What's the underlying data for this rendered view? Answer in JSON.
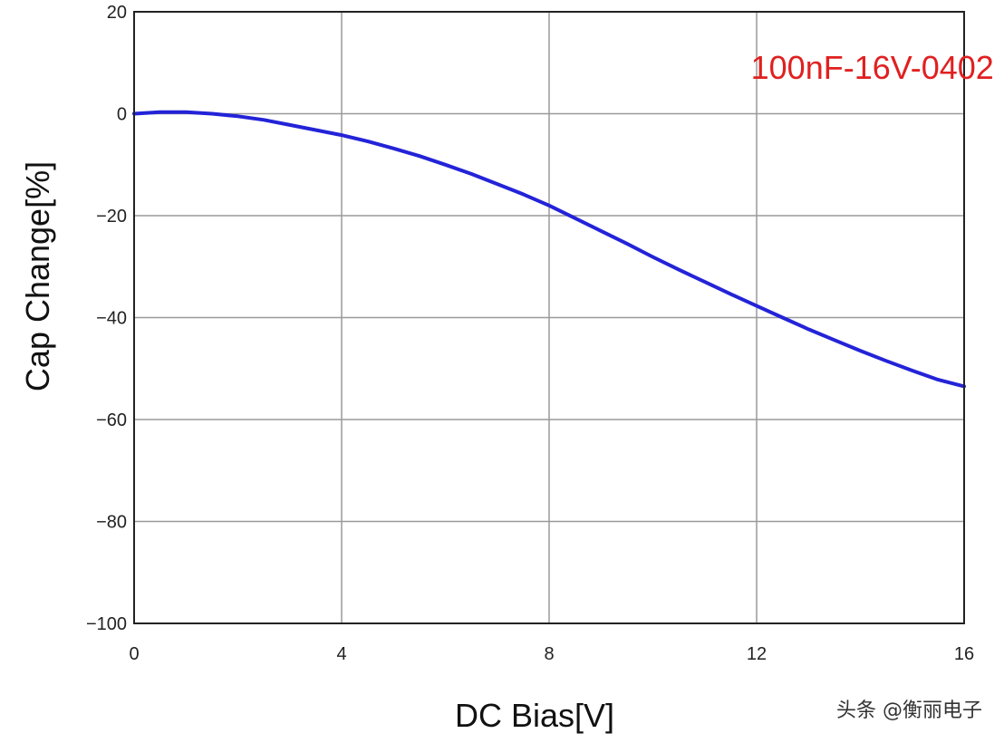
{
  "chart_data": {
    "type": "line",
    "title": "",
    "xlabel": "DC Bias[V]",
    "ylabel": "Cap Change[%]",
    "xlim": [
      0,
      16
    ],
    "ylim": [
      -100,
      20
    ],
    "xticks": [
      0,
      4,
      8,
      12,
      16
    ],
    "xtick_labels": [
      "0",
      "4",
      "8",
      "12",
      "16"
    ],
    "yticks": [
      20,
      0,
      -20,
      -40,
      -60,
      -80,
      -100
    ],
    "ytick_labels": [
      "20",
      "0",
      "−20",
      "−40",
      "−60",
      "−80",
      "−100"
    ],
    "grid": true,
    "legend": "none",
    "series": [
      {
        "color": "#2323d8",
        "x": [
          0,
          0.5,
          1,
          1.5,
          2,
          2.5,
          3,
          3.5,
          4,
          4.5,
          5,
          5.5,
          6,
          6.5,
          7,
          7.5,
          8,
          8.5,
          9,
          9.5,
          10,
          10.5,
          11,
          11.5,
          12,
          12.5,
          13,
          13.5,
          14,
          14.5,
          15,
          15.5,
          16
        ],
        "y": [
          0,
          0.3,
          0.3,
          0,
          -0.5,
          -1.2,
          -2.2,
          -3.2,
          -4.2,
          -5.4,
          -6.8,
          -8.3,
          -10,
          -11.8,
          -13.8,
          -15.8,
          -18,
          -20.5,
          -23,
          -25.5,
          -28.1,
          -30.6,
          -33,
          -35.4,
          -37.7,
          -40,
          -42.3,
          -44.4,
          -46.5,
          -48.5,
          -50.4,
          -52.2,
          -53.5
        ]
      }
    ],
    "annotations": [
      {
        "text": "100nF-16V-0402",
        "color": "#e02020",
        "x": 12.5,
        "y": 9
      }
    ]
  },
  "watermark": "头条 @衡丽电子"
}
